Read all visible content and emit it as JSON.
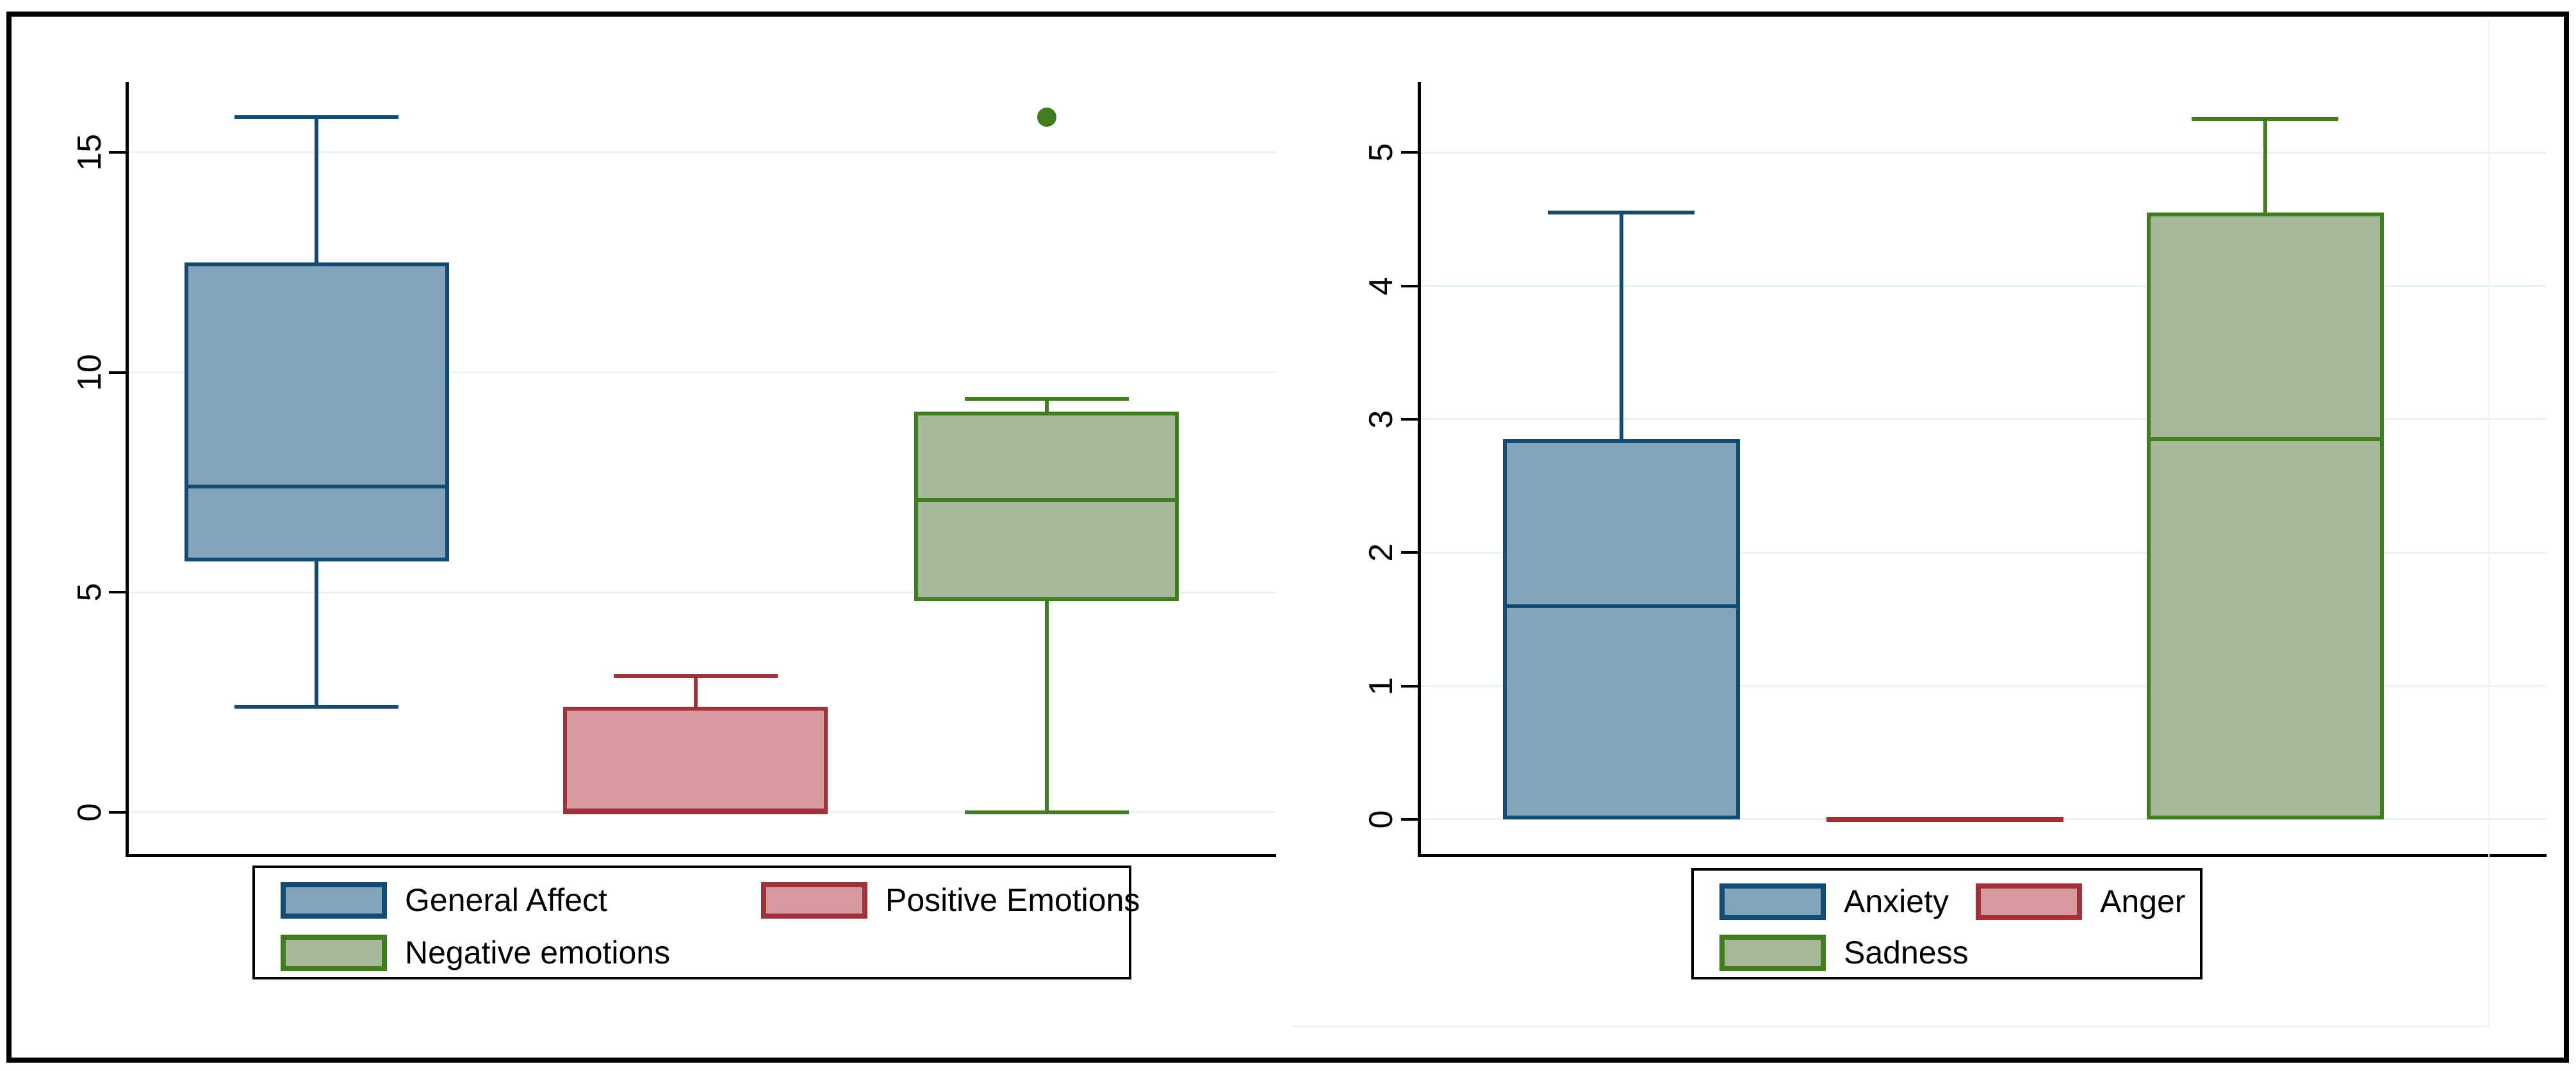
{
  "figure": {
    "background": "#FFFFFF",
    "border_color": "#000000",
    "grid_color": "#E9F3F3",
    "axis_color": "#000000"
  },
  "chart_data": [
    {
      "type": "box",
      "title": "",
      "xlabel": "",
      "ylabel": "",
      "categories": [
        "General Affect",
        "Positive Emotions",
        "Negative emotions"
      ],
      "yticks": [
        0,
        5,
        10,
        15
      ],
      "ylim": [
        -0.95,
        16.6
      ],
      "grid": true,
      "legend_position": "bottom",
      "series": [
        {
          "name": "General Affect",
          "fill": "#83A4BA",
          "stroke": "#124C74",
          "whisker_low": 2.4,
          "q1": 5.7,
          "median": 7.4,
          "q3": 12.5,
          "whisker_high": 15.8,
          "outliers": []
        },
        {
          "name": "Positive Emotions",
          "fill": "#D79BA0",
          "stroke": "#A23239",
          "whisker_low": 0,
          "q1": 0,
          "median": 0,
          "q3": 2.4,
          "whisker_high": 3.1,
          "outliers": []
        },
        {
          "name": "Negative emotions",
          "fill": "#A6B897",
          "stroke": "#3F7D1E",
          "whisker_low": 0,
          "q1": 4.8,
          "median": 7.1,
          "q3": 9.1,
          "whisker_high": 9.4,
          "outliers": [
            15.8
          ]
        }
      ]
    },
    {
      "type": "box",
      "title": "",
      "xlabel": "",
      "ylabel": "",
      "categories": [
        "Anxiety",
        "Anger",
        "Sadness"
      ],
      "yticks": [
        0,
        1,
        2,
        3,
        4,
        5
      ],
      "ylim": [
        -0.26,
        5.53
      ],
      "grid": true,
      "legend_position": "bottom",
      "series": [
        {
          "name": "Anxiety",
          "fill": "#83A4BA",
          "stroke": "#124C74",
          "whisker_low": 0,
          "q1": 0,
          "median": 1.6,
          "q3": 2.85,
          "whisker_high": 4.55,
          "outliers": []
        },
        {
          "name": "Anger",
          "fill": "#D79BA0",
          "stroke": "#A23239",
          "whisker_low": 0,
          "q1": 0,
          "median": 0,
          "q3": 0,
          "whisker_high": 0,
          "outliers": []
        },
        {
          "name": "Sadness",
          "fill": "#A6B897",
          "stroke": "#3F7D1E",
          "whisker_low": 0,
          "q1": 0,
          "median": 2.85,
          "q3": 4.55,
          "whisker_high": 5.25,
          "outliers": []
        }
      ]
    }
  ]
}
